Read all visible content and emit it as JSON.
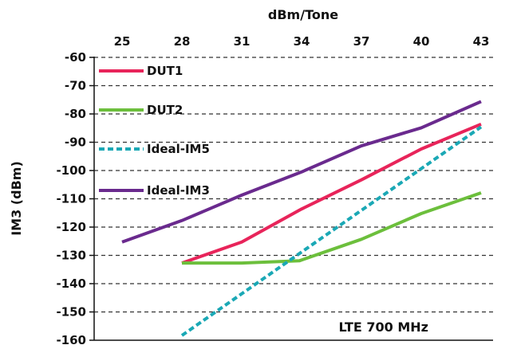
{
  "chart_data": {
    "type": "line",
    "title": "",
    "xlabel": "dBm/Tone",
    "ylabel": "IM3 (dBm)",
    "xlim": [
      25,
      43
    ],
    "ylim": [
      -160,
      -60
    ],
    "x_ticks": [
      "25",
      "28",
      "31",
      "34",
      "37",
      "40",
      "43"
    ],
    "y_ticks": [
      "-60",
      "-70",
      "-80",
      "-90",
      "-100",
      "-110",
      "-120",
      "-130",
      "-140",
      "-150",
      "-160"
    ],
    "x_axis_position": "top",
    "grid": "horizontal dashed",
    "legend_position": "top-left",
    "annotation": "LTE 700 MHz",
    "series": [
      {
        "name": "DUT1",
        "color": "#e8245a",
        "dash": "solid",
        "points": [
          [
            28,
            -132.7
          ],
          [
            31,
            -125.3
          ],
          [
            34,
            -113.6
          ],
          [
            37,
            -103.3
          ],
          [
            40,
            -92.4
          ],
          [
            43,
            -83.6
          ]
        ]
      },
      {
        "name": "DUT2",
        "color": "#6cbf3c",
        "dash": "solid",
        "points": [
          [
            28,
            -132.7
          ],
          [
            31,
            -132.7
          ],
          [
            33.9,
            -131.9
          ],
          [
            37,
            -124.3
          ],
          [
            40,
            -115.2
          ],
          [
            43,
            -107.9
          ]
        ]
      },
      {
        "name": "Ideal-IM5",
        "color": "#1aa8b5",
        "dash": "dashed",
        "points": [
          [
            28,
            -158.3
          ],
          [
            43,
            -84.6
          ]
        ]
      },
      {
        "name": "Ideal-IM3",
        "color": "#6a2a8e",
        "dash": "solid",
        "points": [
          [
            25,
            -125.3
          ],
          [
            28,
            -117.7
          ],
          [
            31,
            -108.7
          ],
          [
            34,
            -100.5
          ],
          [
            37,
            -91.3
          ],
          [
            40,
            -84.9
          ],
          [
            43,
            -75.6
          ]
        ]
      }
    ]
  }
}
